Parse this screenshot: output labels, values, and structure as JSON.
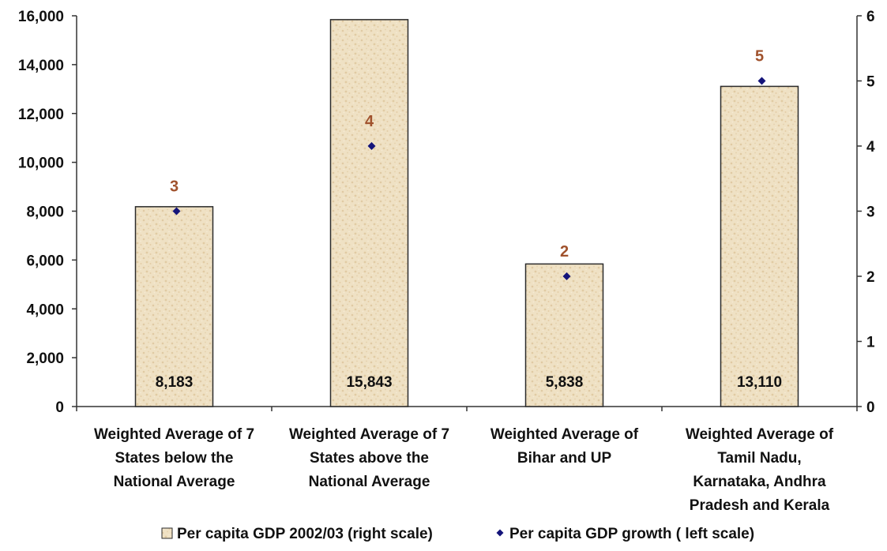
{
  "chart_data": {
    "type": "bar",
    "categories": [
      [
        "Weighted Average of 7",
        "States below the",
        "National Average"
      ],
      [
        "Weighted Average of 7",
        "States above the",
        "National Average"
      ],
      [
        "Weighted Average of",
        "Bihar and UP"
      ],
      [
        "Weighted Average of",
        "Tamil Nadu,",
        "Karnataka, Andhra",
        "Pradesh and Kerala"
      ]
    ],
    "series": [
      {
        "name": "Per capita GDP 2002/03  (right scale)",
        "type": "bar",
        "axis": "left",
        "values": [
          8183,
          15843,
          5838,
          13110
        ],
        "labels": [
          "8,183",
          "15,843",
          "5,838",
          "13,110"
        ]
      },
      {
        "name": "Per capita GDP growth ( left scale)",
        "type": "scatter",
        "axis": "right",
        "values": [
          3,
          4,
          2,
          5
        ],
        "labels": [
          "3",
          "4",
          "2",
          "5"
        ]
      }
    ],
    "left_axis": {
      "range": [
        0,
        16000
      ],
      "ticks": [
        0,
        2000,
        4000,
        6000,
        8000,
        10000,
        12000,
        14000,
        16000
      ],
      "tick_labels": [
        "0",
        "2,000",
        "4,000",
        "6,000",
        "8,000",
        "10,000",
        "12,000",
        "14,000",
        "16,000"
      ]
    },
    "right_axis": {
      "range": [
        0,
        6
      ],
      "ticks": [
        0,
        1,
        2,
        3,
        4,
        5,
        6
      ],
      "tick_labels": [
        "0",
        "1",
        "2",
        "3",
        "4",
        "5",
        "6"
      ]
    },
    "grid": false,
    "legend_position": "bottom",
    "title": "",
    "colors": {
      "bar_fill": "#efe1c4",
      "bar_fill_dark": "#d9bf94",
      "bar_stroke": "#2b2b2b",
      "marker": "#14147a",
      "point_label": "#a0522d",
      "axis": "#333333"
    }
  }
}
